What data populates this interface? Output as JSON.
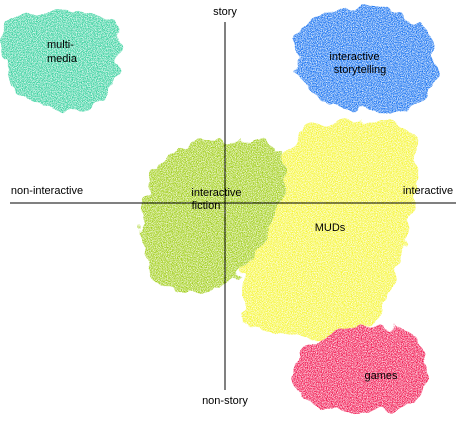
{
  "axes": {
    "top": "story",
    "bottom": "non-story",
    "left": "non-interactive",
    "right": "interactive"
  },
  "regions": [
    {
      "lines": [
        "multi-",
        "media"
      ]
    },
    {
      "lines": [
        "interactive",
        "storytelling"
      ]
    },
    {
      "lines": [
        "interactive",
        "fiction"
      ]
    },
    {
      "lines": [
        "MUDs"
      ]
    },
    {
      "lines": [
        "games"
      ]
    }
  ]
}
